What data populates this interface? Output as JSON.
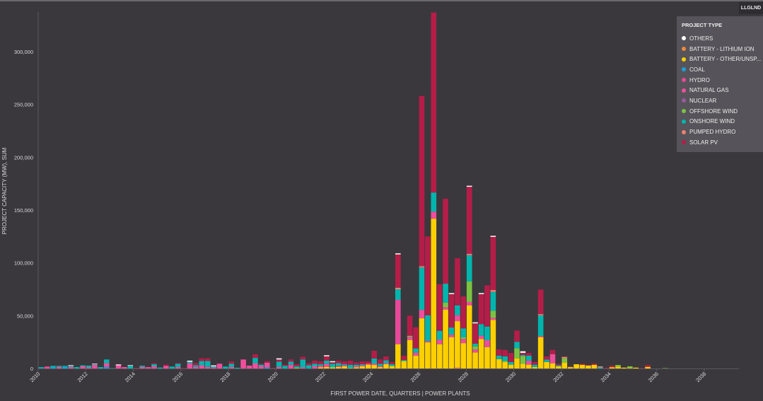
{
  "legend_button": "LLGLND",
  "legend": {
    "title": "PROJECT TYPE",
    "items": [
      {
        "key": "others",
        "label": "OTHERS",
        "color": "#ffffff"
      },
      {
        "key": "battery_li",
        "label": "BATTERY - LITHIUM ION",
        "color": "#f0883e"
      },
      {
        "key": "battery_other",
        "label": "BATTERY - OTHER/UNSP...",
        "color": "#ffd000"
      },
      {
        "key": "coal",
        "label": "COAL",
        "color": "#1a9fd9"
      },
      {
        "key": "hydro",
        "label": "HYDRO",
        "color": "#e8489a"
      },
      {
        "key": "natural_gas",
        "label": "NATURAL GAS",
        "color": "#ee4f9c"
      },
      {
        "key": "nuclear",
        "label": "NUCLEAR",
        "color": "#9b59a0"
      },
      {
        "key": "offshore_wind",
        "label": "OFFSHORE WIND",
        "color": "#7cc242"
      },
      {
        "key": "onshore_wind",
        "label": "ONSHORE WIND",
        "color": "#00b5ad"
      },
      {
        "key": "pumped_hydro",
        "label": "PUMPED HYDRO",
        "color": "#f08070"
      },
      {
        "key": "solar_pv",
        "label": "SOLAR PV",
        "color": "#b51d48"
      }
    ]
  },
  "chart_data": {
    "type": "bar",
    "stacked": true,
    "xlabel": "FIRST POWER DATE, QUARTERS | POWER PLANTS",
    "ylabel": "PROJECT CAPACITY (MW), SUM",
    "ylim": [
      0,
      337000
    ],
    "y_ticks": [
      0,
      50000,
      100000,
      150000,
      200000,
      250000,
      300000
    ],
    "y_tick_labels": [
      "0",
      "50,000",
      "100,000",
      "150,000",
      "200,000",
      "250,000",
      "300,000"
    ],
    "x_tick_labels": [
      "2010",
      "2012",
      "2014",
      "2016",
      "2018",
      "2020",
      "2022",
      "2024",
      "2026",
      "2028",
      "2030",
      "2032",
      "2034",
      "2036",
      "2038"
    ],
    "x_range": [
      "2010 Q1",
      "2039 Q2"
    ],
    "grid": false,
    "legend_position": "top-right",
    "stack_order": [
      "battery_li",
      "battery_other",
      "coal",
      "hydro",
      "natural_gas",
      "nuclear",
      "offshore_wind",
      "onshore_wind",
      "pumped_hydro",
      "solar_pv",
      "others"
    ],
    "bars": [
      {
        "q": "2010 Q1",
        "coal": 500,
        "onshore_wind": 800
      },
      {
        "q": "2010 Q2",
        "natural_gas": 1800
      },
      {
        "q": "2010 Q3",
        "coal": 1000,
        "onshore_wind": 1500
      },
      {
        "q": "2010 Q4",
        "natural_gas": 1500,
        "onshore_wind": 1000
      },
      {
        "q": "2011 Q1",
        "coal": 1500,
        "onshore_wind": 1000
      },
      {
        "q": "2011 Q2",
        "natural_gas": 1500,
        "onshore_wind": 1000,
        "others": 600
      },
      {
        "q": "2011 Q3",
        "onshore_wind": 1300
      },
      {
        "q": "2011 Q4",
        "natural_gas": 2000,
        "onshore_wind": 1000
      },
      {
        "q": "2012 Q1",
        "natural_gas": 1000,
        "onshore_wind": 1700
      },
      {
        "q": "2012 Q2",
        "natural_gas": 3500,
        "onshore_wind": 500,
        "others": 500
      },
      {
        "q": "2012 Q3",
        "onshore_wind": 1300
      },
      {
        "q": "2012 Q4",
        "coal": 1500,
        "natural_gas": 3500,
        "onshore_wind": 3500
      },
      {
        "q": "2013 Q1",
        "onshore_wind": 300
      },
      {
        "q": "2013 Q2",
        "natural_gas": 3000,
        "others": 800
      },
      {
        "q": "2013 Q3",
        "natural_gas": 1300
      },
      {
        "q": "2013 Q4",
        "onshore_wind": 2500,
        "others": 600
      },
      {
        "q": "2014 Q1",
        "solar_pv": 500
      },
      {
        "q": "2014 Q2",
        "natural_gas": 1500,
        "onshore_wind": 1200
      },
      {
        "q": "2014 Q3",
        "natural_gas": 1300
      },
      {
        "q": "2014 Q4",
        "natural_gas": 2000,
        "onshore_wind": 2000,
        "solar_pv": 1100
      },
      {
        "q": "2015 Q1",
        "onshore_wind": 900
      },
      {
        "q": "2015 Q2",
        "natural_gas": 2500,
        "solar_pv": 1100
      },
      {
        "q": "2015 Q3",
        "onshore_wind": 1800
      },
      {
        "q": "2015 Q4",
        "natural_gas": 1500,
        "onshore_wind": 3000,
        "solar_pv": 600
      },
      {
        "q": "2016 Q1",
        "solar_pv": 400
      },
      {
        "q": "2016 Q2",
        "natural_gas": 5000,
        "onshore_wind": 1400,
        "others": 1000
      },
      {
        "q": "2016 Q3",
        "natural_gas": 1500,
        "onshore_wind": 1500,
        "solar_pv": 2100
      },
      {
        "q": "2016 Q4",
        "natural_gas": 3000,
        "onshore_wind": 4000,
        "solar_pv": 2600
      },
      {
        "q": "2017 Q1",
        "natural_gas": 1500,
        "onshore_wind": 5500,
        "solar_pv": 2600
      },
      {
        "q": "2017 Q2",
        "natural_gas": 1000,
        "onshore_wind": 1000,
        "others": 900
      },
      {
        "q": "2017 Q3",
        "natural_gas": 4500
      },
      {
        "q": "2017 Q4",
        "onshore_wind": 1800
      },
      {
        "q": "2018 Q1",
        "natural_gas": 1500,
        "onshore_wind": 3000,
        "solar_pv": 2200
      },
      {
        "q": "2018 Q2",
        "onshore_wind": 700
      },
      {
        "q": "2018 Q3",
        "natural_gas": 8500
      },
      {
        "q": "2018 Q4",
        "natural_gas": 2700
      },
      {
        "q": "2019 Q1",
        "natural_gas": 5000,
        "onshore_wind": 5000,
        "solar_pv": 3400
      },
      {
        "q": "2019 Q2",
        "natural_gas": 2000,
        "onshore_wind": 1500,
        "solar_pv": 1000
      },
      {
        "q": "2019 Q3",
        "coal": 1000,
        "natural_gas": 4500,
        "solar_pv": 1400
      },
      {
        "q": "2019 Q4",
        "solar_pv": 500
      },
      {
        "q": "2020 Q1",
        "natural_gas": 1500,
        "onshore_wind": 5000,
        "solar_pv": 2000,
        "others": 1100
      },
      {
        "q": "2020 Q2",
        "onshore_wind": 2500,
        "solar_pv": 1100
      },
      {
        "q": "2020 Q3",
        "natural_gas": 3500,
        "onshore_wind": 3000,
        "solar_pv": 2000
      },
      {
        "q": "2020 Q4",
        "battery_other": 500,
        "onshore_wind": 1500,
        "solar_pv": 2000
      },
      {
        "q": "2021 Q1",
        "natural_gas": 1000,
        "onshore_wind": 7500,
        "solar_pv": 2600
      },
      {
        "q": "2021 Q2",
        "onshore_wind": 3000,
        "solar_pv": 2100
      },
      {
        "q": "2021 Q3",
        "natural_gas": 2000,
        "onshore_wind": 2500,
        "solar_pv": 2900
      },
      {
        "q": "2021 Q4",
        "battery_other": 1000,
        "natural_gas": 1500,
        "onshore_wind": 1500,
        "solar_pv": 2700
      },
      {
        "q": "2022 Q1",
        "battery_other": 1500,
        "natural_gas": 3000,
        "onshore_wind": 3000,
        "solar_pv": 4000,
        "others": 1000
      },
      {
        "q": "2022 Q2",
        "battery_other": 1000,
        "onshore_wind": 3500,
        "solar_pv": 1400,
        "others": 1000
      },
      {
        "q": "2022 Q3",
        "battery_other": 1500,
        "natural_gas": 1000,
        "onshore_wind": 2500,
        "solar_pv": 2400
      },
      {
        "q": "2022 Q4",
        "battery_other": 2000,
        "natural_gas": 1000,
        "onshore_wind": 1000,
        "solar_pv": 2700
      },
      {
        "q": "2023 Q1",
        "battery_other": 500,
        "onshore_wind": 3000,
        "solar_pv": 3900
      },
      {
        "q": "2023 Q2",
        "battery_other": 1000,
        "natural_gas": 1000,
        "onshore_wind": 1500,
        "solar_pv": 2300
      },
      {
        "q": "2023 Q3",
        "battery_other": 2000,
        "natural_gas": 1000,
        "onshore_wind": 1000,
        "solar_pv": 2700
      },
      {
        "q": "2023 Q4",
        "battery_other": 3600,
        "natural_gas": 1000,
        "solar_pv": 2100
      },
      {
        "q": "2024 Q1",
        "battery_other": 3300,
        "natural_gas": 1400,
        "onshore_wind": 4700,
        "solar_pv": 7300
      },
      {
        "q": "2024 Q2",
        "battery_other": 1300,
        "natural_gas": 1000,
        "onshore_wind": 2100,
        "solar_pv": 4300
      },
      {
        "q": "2024 Q3",
        "battery_other": 4000,
        "natural_gas": 1000,
        "onshore_wind": 2700,
        "solar_pv": 3700
      },
      {
        "q": "2024 Q4",
        "battery_other": 2300,
        "onshore_wind": 1700,
        "solar_pv": 2000
      },
      {
        "q": "2025 Q1",
        "battery_other": 23000,
        "hydro": 42000,
        "onshore_wind": 10000,
        "pumped_hydro": 1500,
        "solar_pv": 31500,
        "others": 1000
      },
      {
        "q": "2025 Q2",
        "battery_other": 7000,
        "onshore_wind": 1000,
        "solar_pv": 4000
      },
      {
        "q": "2025 Q3",
        "battery_other": 27000,
        "natural_gas": 3000,
        "offshore_wind": 1000,
        "solar_pv": 19000
      },
      {
        "q": "2025 Q4",
        "battery_other": 12000,
        "natural_gas": 3000,
        "onshore_wind": 4000,
        "solar_pv": 20000
      },
      {
        "q": "2026 Q1",
        "battery_other": 47500,
        "natural_gas": 8000,
        "onshore_wind": 40200,
        "pumped_hydro": 1100,
        "solar_pv": 161200
      },
      {
        "q": "2026 Q2",
        "battery_other": 24700,
        "natural_gas": 1300,
        "onshore_wind": 24400,
        "solar_pv": 74600
      },
      {
        "q": "2026 Q3",
        "battery_other": 141800,
        "natural_gas": 6700,
        "onshore_wind": 18100,
        "solar_pv": 170400
      },
      {
        "q": "2026 Q4",
        "battery_other": 23000,
        "natural_gas": 4400,
        "onshore_wind": 8300,
        "solar_pv": 44100
      },
      {
        "q": "2027 Q1",
        "battery_other": 55800,
        "natural_gas": 2200,
        "offshore_wind": 4400,
        "onshore_wind": 17900,
        "solar_pv": 80300
      },
      {
        "q": "2027 Q2",
        "battery_other": 29700,
        "natural_gas": 2300,
        "onshore_wind": 6800,
        "solar_pv": 31600,
        "others": 1000
      },
      {
        "q": "2027 Q3",
        "battery_li": 1000,
        "battery_other": 43800,
        "natural_gas": 5700,
        "onshore_wind": 9300,
        "solar_pv": 44600
      },
      {
        "q": "2027 Q4",
        "battery_other": 24000,
        "natural_gas": 4000,
        "offshore_wind": 1500,
        "onshore_wind": 8500,
        "solar_pv": 30200
      },
      {
        "q": "2028 Q1",
        "battery_other": 59800,
        "natural_gas": 3200,
        "offshore_wind": 19500,
        "onshore_wind": 24800,
        "pumped_hydro": 1300,
        "solar_pv": 63400,
        "others": 1000
      },
      {
        "q": "2028 Q2",
        "battery_other": 15200,
        "natural_gas": 2800,
        "offshore_wind": 3000,
        "onshore_wind": 2500,
        "solar_pv": 19200,
        "others": 1000
      },
      {
        "q": "2028 Q3",
        "battery_other": 27900,
        "natural_gas": 3100,
        "onshore_wind": 11000,
        "solar_pv": 28400,
        "others": 1000
      },
      {
        "q": "2028 Q4",
        "battery_other": 20300,
        "natural_gas": 6500,
        "onshore_wind": 12900,
        "solar_pv": 39000
      },
      {
        "q": "2029 Q1",
        "battery_other": 46000,
        "natural_gas": 2000,
        "offshore_wind": 6700,
        "onshore_wind": 17800,
        "pumped_hydro": 1800,
        "solar_pv": 50300,
        "others": 1000
      },
      {
        "q": "2029 Q2",
        "battery_other": 8900,
        "onshore_wind": 3300,
        "solar_pv": 5800
      },
      {
        "q": "2029 Q3",
        "battery_other": 6200,
        "offshore_wind": 1000,
        "onshore_wind": 4300,
        "solar_pv": 6000
      },
      {
        "q": "2029 Q4",
        "battery_other": 3600,
        "onshore_wind": 2600,
        "solar_pv": 8500
      },
      {
        "q": "2030 Q1",
        "battery_other": 9600,
        "offshore_wind": 9600,
        "onshore_wind": 6000,
        "solar_pv": 10700
      },
      {
        "q": "2030 Q2",
        "battery_other": 4500,
        "offshore_wind": 7300,
        "onshore_wind": 900,
        "solar_pv": 2100,
        "others": 1500
      },
      {
        "q": "2030 Q3",
        "battery_other": 3600,
        "natural_gas": 3800,
        "onshore_wind": 4800,
        "solar_pv": 2500
      },
      {
        "q": "2030 Q4",
        "battery_other": 1300,
        "onshore_wind": 2300,
        "solar_pv": 2600
      },
      {
        "q": "2031 Q1",
        "battery_other": 29700,
        "natural_gas": 1000,
        "onshore_wind": 19700,
        "pumped_hydro": 1100,
        "solar_pv": 23200
      },
      {
        "q": "2031 Q2",
        "battery_other": 6200,
        "onshore_wind": 2200,
        "solar_pv": 3000
      },
      {
        "q": "2031 Q3",
        "battery_other": 4900,
        "natural_gas": 8700,
        "solar_pv": 3900
      },
      {
        "q": "2031 Q4",
        "battery_other": 2000,
        "onshore_wind": 1000,
        "solar_pv": 1500
      },
      {
        "q": "2032 Q1",
        "battery_other": 5600,
        "offshore_wind": 4000,
        "pumped_hydro": 1400
      },
      {
        "q": "2032 Q2",
        "battery_other": 1000,
        "pumped_hydro": 500
      },
      {
        "q": "2032 Q3",
        "battery_other": 4000
      },
      {
        "q": "2032 Q4",
        "battery_other": 3500,
        "solar_pv": 1000
      },
      {
        "q": "2033 Q1",
        "battery_other": 2800,
        "solar_pv": 500
      },
      {
        "q": "2033 Q2",
        "battery_other": 3500,
        "solar_pv": 1200
      },
      {
        "q": "2033 Q3",
        "onshore_wind": 1000,
        "pumped_hydro": 1000
      },
      {
        "q": "2033 Q4",
        "solar_pv": 500
      },
      {
        "q": "2034 Q1",
        "battery_other": 1200,
        "solar_pv": 1500
      },
      {
        "q": "2034 Q2",
        "battery_other": 1800,
        "offshore_wind": 1500
      },
      {
        "q": "2034 Q3",
        "battery_other": 800
      },
      {
        "q": "2034 Q4",
        "battery_other": 500,
        "offshore_wind": 1500
      },
      {
        "q": "2035 Q1",
        "battery_other": 800
      },
      {
        "q": "2035 Q2",
        "solar_pv": 300
      },
      {
        "q": "2035 Q3",
        "battery_other": 1500,
        "solar_pv": 1800
      },
      {
        "q": "2035 Q4"
      },
      {
        "q": "2036 Q1"
      },
      {
        "q": "2036 Q2",
        "offshore_wind": 300
      }
    ]
  }
}
